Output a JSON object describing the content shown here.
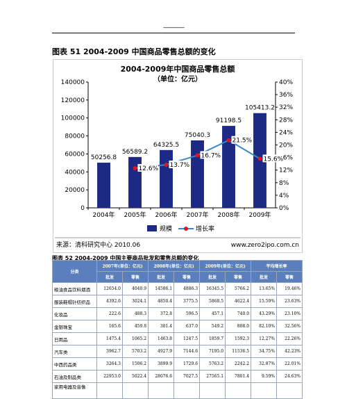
{
  "header": {
    "dashes": "----------------"
  },
  "figure": {
    "caption": "图表 51 2004-2009 中国商品零售总额的变化"
  },
  "chart_data": {
    "type": "bar+line",
    "title_line1": "2004-2009年中国商品零售总额",
    "title_line2": "（单位：亿元）",
    "categories": [
      "2004年",
      "2005年",
      "2006年",
      "2007年",
      "2008年",
      "2009年"
    ],
    "series": [
      {
        "name": "规模",
        "type": "bar",
        "axis": "left",
        "color": "#1c2a86",
        "values": [
          50256.8,
          56589.2,
          64325.5,
          75040.3,
          91198.5,
          105413.2
        ],
        "labels": [
          "50256.8",
          "56589.2",
          "64325.5",
          "75040.3",
          "91198.5",
          "105413.2"
        ]
      },
      {
        "name": "增长率",
        "type": "line",
        "axis": "right",
        "color": "#3b86c8",
        "marker_color": "#e0151b",
        "values": [
          null,
          12.6,
          13.7,
          16.7,
          21.5,
          15.6
        ],
        "labels": [
          "",
          "12.6%",
          "13.7%",
          "16.7%",
          "21.5%",
          "15.6%"
        ]
      }
    ],
    "y_left": {
      "min": 0,
      "max": 140000,
      "ticks": [
        "0",
        "20000",
        "40000",
        "60000",
        "80000",
        "100000",
        "120000",
        "140000"
      ]
    },
    "y_right": {
      "min": 0,
      "max": 40,
      "ticks": [
        "0%",
        "4%",
        "8%",
        "12%",
        "16%",
        "20%",
        "24%",
        "28%",
        "32%",
        "36%",
        "40%"
      ]
    },
    "grid": false,
    "legend_position": "bottom",
    "source_left": "来源：清科研究中心 2010.06",
    "source_right": "www.zero2ipo.com.cn"
  },
  "table": {
    "caption": "图表 52 2004-2009 中国主要商品批发和零售总额的变化",
    "group_headers": [
      "分类",
      "2007年(单位：亿元)",
      "2008年(单位：亿元)",
      "2009年(单位：亿元)",
      "平均增长率"
    ],
    "sub_headers": [
      "批发",
      "零售",
      "批发",
      "零售",
      "批发",
      "零售",
      "批发",
      "零售"
    ],
    "rows": [
      {
        "category": "粮油食品饮料烟酒",
        "cells": [
          "12654.0",
          "4040.9",
          "14586.1",
          "4886.3",
          "16345.5",
          "5766.2",
          "13.65%",
          "19.46%"
        ]
      },
      {
        "category": "服装鞋帽针纺织品",
        "cells": [
          "4392.6",
          "3024.1",
          "4850.4",
          "3775.5",
          "5868.5",
          "4622.4",
          "15.59%",
          "23.63%"
        ]
      },
      {
        "category": "化妆品",
        "cells": [
          "222.6",
          "488.3",
          "372.8",
          "596.5",
          "457.1",
          "740.0",
          "43.29%",
          "23.10%"
        ]
      },
      {
        "category": "金银珠宝",
        "cells": [
          "165.6",
          "459.8",
          "301.4",
          "637.0",
          "549.2",
          "808.0",
          "82.10%",
          "32.56%"
        ]
      },
      {
        "category": "日用品",
        "cells": [
          "1475.4",
          "1065.2",
          "1463.8",
          "1247.5",
          "1859.7",
          "1592.3",
          "12.27%",
          "22.26%"
        ]
      },
      {
        "category": "汽车类",
        "cells": [
          "3962.7",
          "5703.2",
          "4927.9",
          "7144.6",
          "7195.0",
          "11536.5",
          "34.75%",
          "42.23%"
        ]
      },
      {
        "category": "中西药品类",
        "cells": [
          "3264.3",
          "1506.2",
          "3899.9",
          "1729.6",
          "5763.2",
          "2242.2",
          "32.87%",
          "22.01%"
        ]
      },
      {
        "category": "石油及制品类",
        "cells": [
          "22953.0",
          "5022.4",
          "28076.6",
          "7027.5",
          "27565.1",
          "7801.4",
          "9.59%",
          "24.63%"
        ]
      },
      {
        "category": "家用电器及音像",
        "cells": [
          "",
          "",
          "",
          "",
          "",
          "",
          "",
          ""
        ]
      }
    ]
  }
}
